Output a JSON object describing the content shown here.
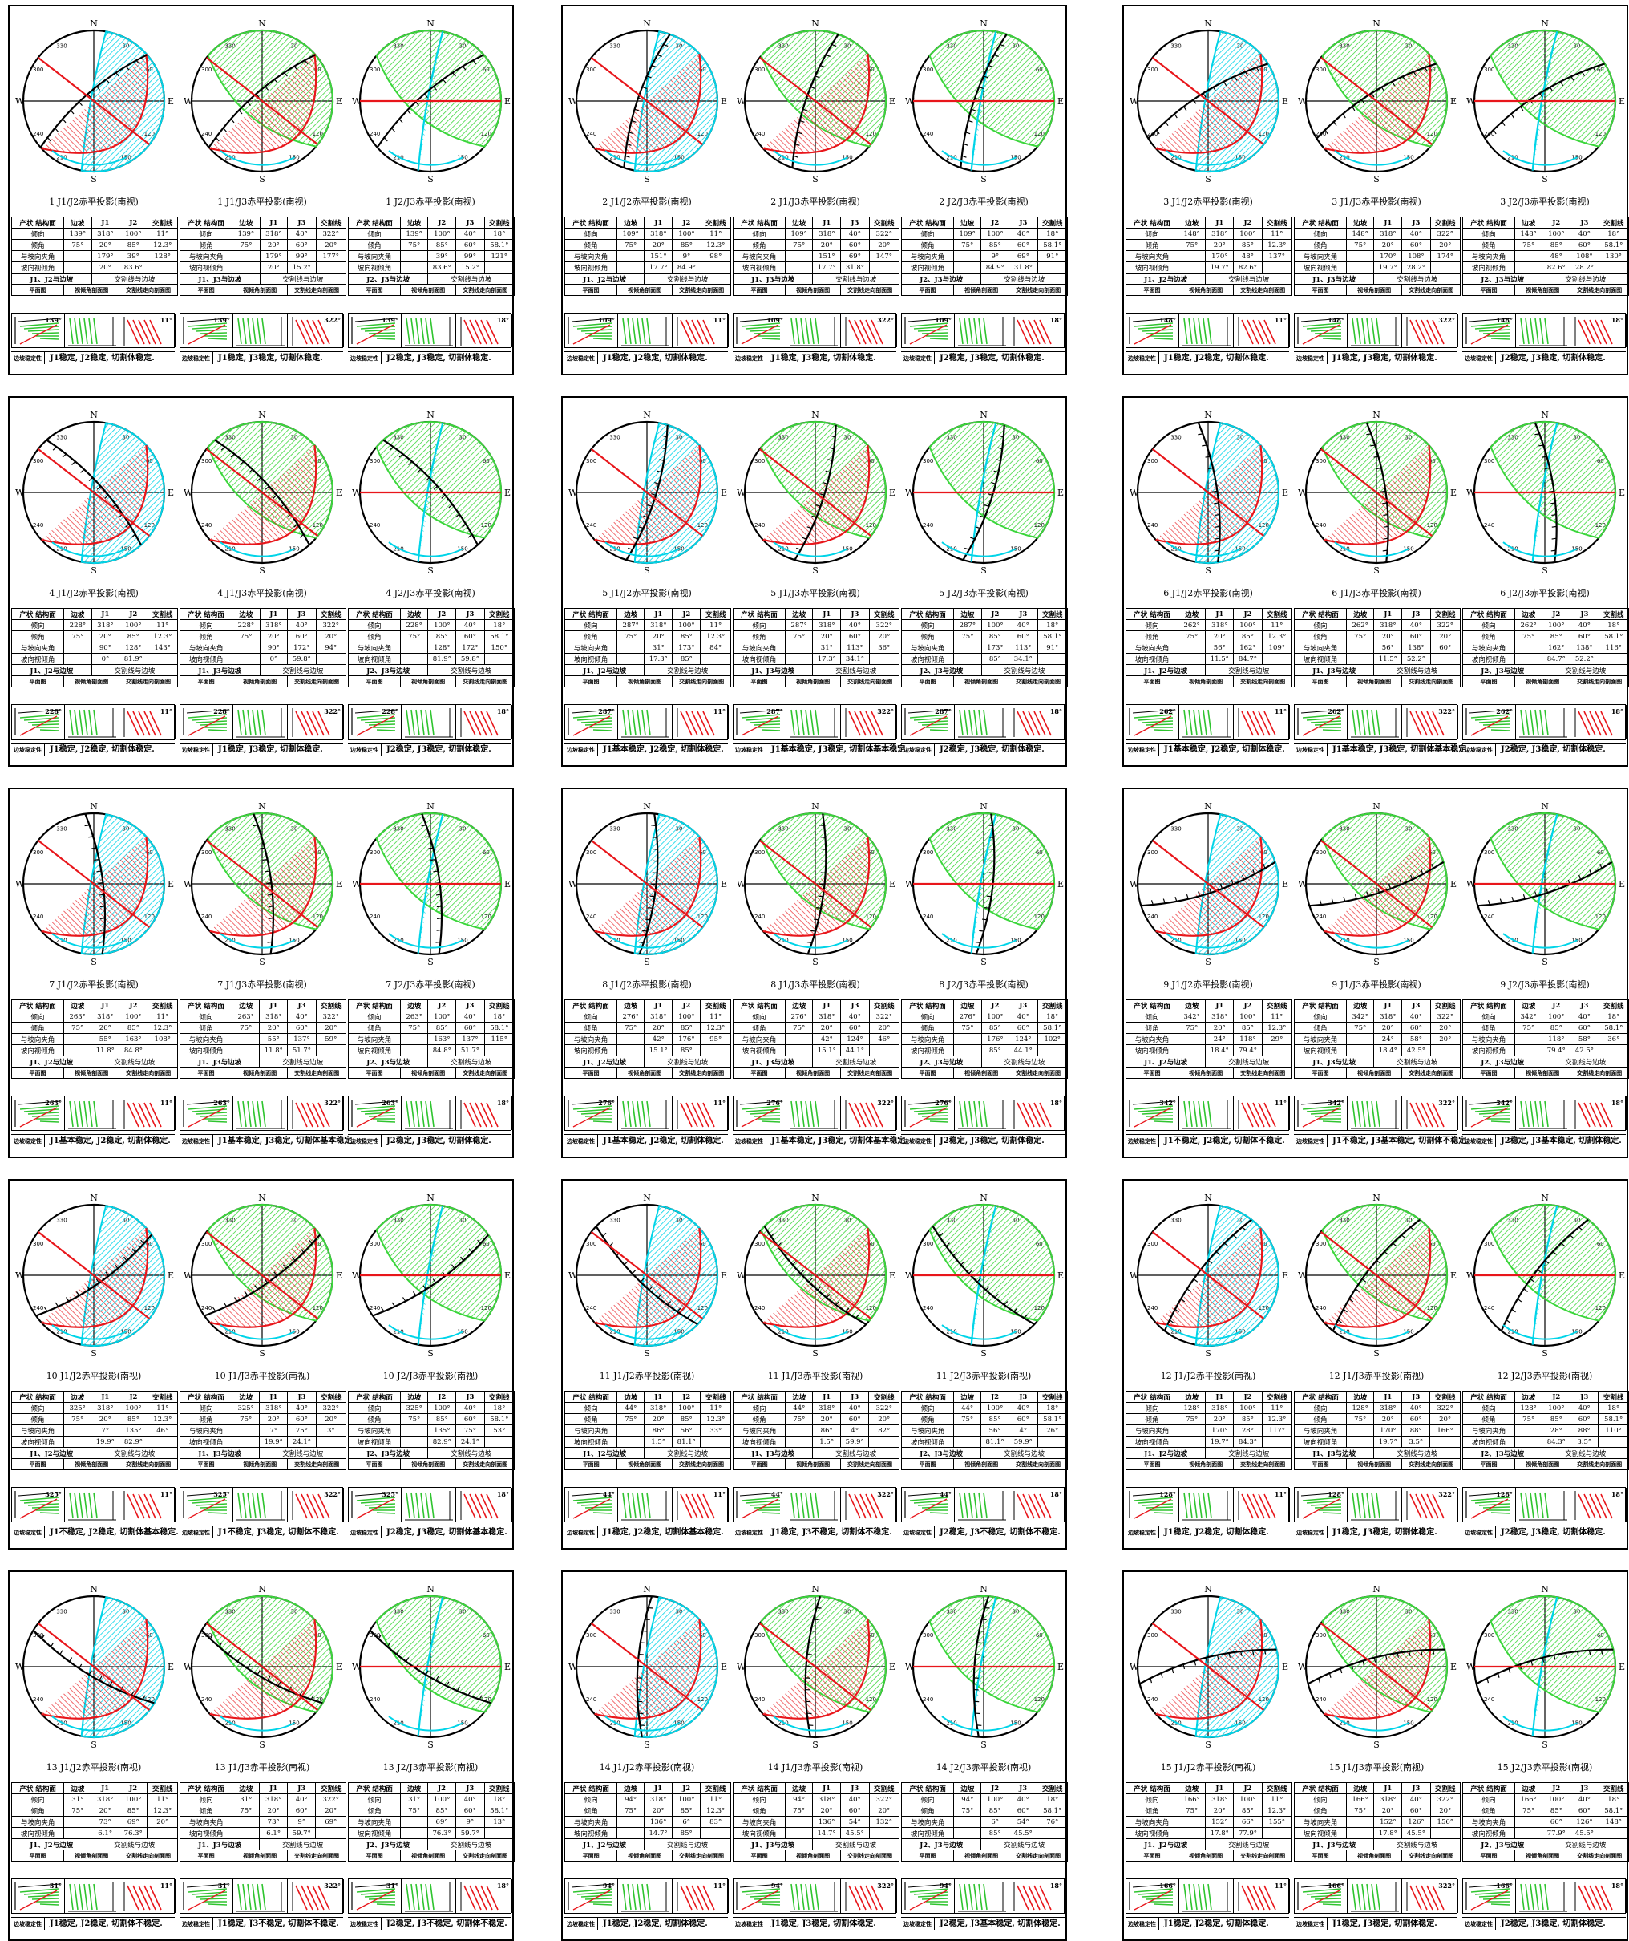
{
  "table_headers": [
    "产状",
    "结构面",
    "边坡",
    "交割线"
  ],
  "row_labels": {
    "dip_dir": "倾向",
    "dip": "倾角",
    "angle": "与坡向夹角",
    "apparent": "坡向视倾角"
  },
  "table_subheader_cols": {
    "j1j2": [
      "J1",
      "J2"
    ],
    "j1j3": [
      "J1",
      "J3"
    ],
    "j2j3": [
      "J2",
      "J3"
    ]
  },
  "pair_headers": {
    "j1j2": "J1、J2与边坡",
    "j1j3": "J1、J3与边坡",
    "j2j3": "J2、J3与边坡"
  },
  "intersect_label": "交割线与边坡",
  "thumb_labels": [
    "平面图",
    "视倾角剖面图",
    "交割线走向剖面图"
  ],
  "conclusion_tag": "边坡稳定性",
  "caption_suffix": "赤平投影(南视)",
  "compass": {
    "N": "N",
    "S": "S",
    "E": "E",
    "W": "W"
  },
  "tick_labels": [
    "30",
    "330",
    "60",
    "300",
    "120",
    "240",
    "150",
    "210"
  ],
  "fixed": {
    "j1": {
      "dir": "318°",
      "dip": "20°"
    },
    "j2": {
      "dir": "100°",
      "dip": "85°"
    },
    "j3": {
      "dir": "40°",
      "dip": "60°"
    },
    "x12": {
      "dir": "11°",
      "dip": "12.3°"
    },
    "x13": {
      "dir": "322°",
      "dip": "20°"
    },
    "x23": {
      "dir": "18°",
      "dip": "58.1°"
    }
  },
  "colors": {
    "slope": "#000000",
    "j1": "#e8161b",
    "j2": "#00d4e8",
    "j3": "#3cd63c"
  },
  "panels": [
    {
      "n": "1",
      "slope": "139°",
      "slope_dip": "75°",
      "a": {
        "cap": "1  J1/J2赤平投影(南视)",
        "ang": [
          "179°",
          "39°",
          "128°"
        ],
        "app": [
          "20°",
          "83.6°",
          ""
        ]
      },
      "b": {
        "cap": "1  J1/J3赤平投影(南视)",
        "ang": [
          "179°",
          "99°",
          "177°"
        ],
        "app": [
          "20°",
          "15.2°",
          ""
        ]
      },
      "c": {
        "cap": "1  J2/J3赤平投影(南视)",
        "ang": [
          "39°",
          "99°",
          "121°"
        ],
        "app": [
          "83.6°",
          "15.2°",
          ""
        ]
      },
      "concl": [
        "J1稳定, J2稳定, 切割体稳定.",
        "J1稳定, J3稳定, 切割体稳定.",
        "J2稳定, J3稳定, 切割体稳定."
      ]
    },
    {
      "n": "2",
      "slope": "109°",
      "slope_dip": "75°",
      "a": {
        "cap": "2  J1/J2赤平投影(南视)",
        "ang": [
          "151°",
          "9°",
          "98°"
        ],
        "app": [
          "17.7°",
          "84.9°",
          ""
        ]
      },
      "b": {
        "cap": "2  J1/J3赤平投影(南视)",
        "ang": [
          "151°",
          "69°",
          "147°"
        ],
        "app": [
          "17.7°",
          "31.8°",
          ""
        ]
      },
      "c": {
        "cap": "2  J2/J3赤平投影(南视)",
        "ang": [
          "9°",
          "69°",
          "91°"
        ],
        "app": [
          "84.9°",
          "31.8°",
          ""
        ]
      },
      "concl": [
        "J1稳定, J2稳定, 切割体稳定.",
        "J1稳定, J3稳定, 切割体稳定.",
        "J2稳定, J3稳定, 切割体稳定."
      ]
    },
    {
      "n": "3",
      "slope": "148°",
      "slope_dip": "75°",
      "a": {
        "cap": "3  J1/J2赤平投影(南视)",
        "ang": [
          "170°",
          "48°",
          "137°"
        ],
        "app": [
          "19.7°",
          "82.6°",
          ""
        ]
      },
      "b": {
        "cap": "3  J1/J3赤平投影(南视)",
        "ang": [
          "170°",
          "108°",
          "174°"
        ],
        "app": [
          "19.7°",
          "28.2°",
          ""
        ]
      },
      "c": {
        "cap": "3  J2/J3赤平投影(南视)",
        "ang": [
          "48°",
          "108°",
          "130°"
        ],
        "app": [
          "82.6°",
          "28.2°",
          ""
        ]
      },
      "concl": [
        "J1稳定, J2稳定, 切割体稳定.",
        "J1稳定, J3稳定, 切割体稳定.",
        "J2稳定, J3稳定, 切割体稳定."
      ]
    },
    {
      "n": "4",
      "slope": "228°",
      "slope_dip": "75°",
      "a": {
        "cap": "4  J1/J2赤平投影(南视)",
        "ang": [
          "90°",
          "128°",
          "143°"
        ],
        "app": [
          "0°",
          "81.9°",
          ""
        ]
      },
      "b": {
        "cap": "4  J1/J3赤平投影(南视)",
        "ang": [
          "90°",
          "172°",
          "94°"
        ],
        "app": [
          "0°",
          "59.8°",
          ""
        ]
      },
      "c": {
        "cap": "4  J2/J3赤平投影(南视)",
        "ang": [
          "128°",
          "172°",
          "150°"
        ],
        "app": [
          "81.9°",
          "59.8°",
          ""
        ]
      },
      "concl": [
        "J1稳定, J2稳定, 切割体稳定.",
        "J1稳定, J3稳定, 切割体稳定.",
        "J2稳定, J3稳定, 切割体稳定."
      ]
    },
    {
      "n": "5",
      "slope": "287°",
      "slope_dip": "75°",
      "a": {
        "cap": "5  J1/J2赤平投影(南视)",
        "ang": [
          "31°",
          "173°",
          "84°"
        ],
        "app": [
          "17.3°",
          "85°",
          ""
        ]
      },
      "b": {
        "cap": "5  J1/J3赤平投影(南视)",
        "ang": [
          "31°",
          "113°",
          "36°"
        ],
        "app": [
          "17.3°",
          "34.1°",
          ""
        ]
      },
      "c": {
        "cap": "5  J2/J3赤平投影(南视)",
        "ang": [
          "173°",
          "113°",
          "91°"
        ],
        "app": [
          "85°",
          "34.1°",
          ""
        ]
      },
      "concl": [
        "J1基本稳定, J2稳定, 切割体稳定.",
        "J1基本稳定, J3稳定, 切割体基本稳定.",
        "J2稳定, J3稳定, 切割体稳定."
      ]
    },
    {
      "n": "6",
      "slope": "262°",
      "slope_dip": "75°",
      "a": {
        "cap": "6  J1/J2赤平投影(南视)",
        "ang": [
          "56°",
          "162°",
          "109°"
        ],
        "app": [
          "11.5°",
          "84.7°",
          ""
        ]
      },
      "b": {
        "cap": "6  J1/J3赤平投影(南视)",
        "ang": [
          "56°",
          "138°",
          "60°"
        ],
        "app": [
          "11.5°",
          "52.2°",
          ""
        ]
      },
      "c": {
        "cap": "6  J2/J3赤平投影(南视)",
        "ang": [
          "162°",
          "138°",
          "116°"
        ],
        "app": [
          "84.7°",
          "52.2°",
          ""
        ]
      },
      "concl": [
        "J1基本稳定, J2稳定, 切割体稳定.",
        "J1基本稳定, J3稳定, 切割体基本稳定.",
        "J2稳定, J3稳定, 切割体稳定."
      ]
    },
    {
      "n": "7",
      "slope": "263°",
      "slope_dip": "75°",
      "a": {
        "cap": "7  J1/J2赤平投影(南视)",
        "ang": [
          "55°",
          "163°",
          "108°"
        ],
        "app": [
          "11.8°",
          "84.8°",
          ""
        ]
      },
      "b": {
        "cap": "7  J1/J3赤平投影(南视)",
        "ang": [
          "55°",
          "137°",
          "59°"
        ],
        "app": [
          "11.8°",
          "51.7°",
          ""
        ]
      },
      "c": {
        "cap": "7  J2/J3赤平投影(南视)",
        "ang": [
          "163°",
          "137°",
          "115°"
        ],
        "app": [
          "84.8°",
          "51.7°",
          ""
        ]
      },
      "concl": [
        "J1基本稳定, J2稳定, 切割体稳定.",
        "J1基本稳定, J3稳定, 切割体基本稳定.",
        "J2稳定, J3稳定, 切割体稳定."
      ]
    },
    {
      "n": "8",
      "slope": "276°",
      "slope_dip": "75°",
      "a": {
        "cap": "8  J1/J2赤平投影(南视)",
        "ang": [
          "42°",
          "176°",
          "95°"
        ],
        "app": [
          "15.1°",
          "85°",
          ""
        ]
      },
      "b": {
        "cap": "8  J1/J3赤平投影(南视)",
        "ang": [
          "42°",
          "124°",
          "46°"
        ],
        "app": [
          "15.1°",
          "44.1°",
          ""
        ]
      },
      "c": {
        "cap": "8  J2/J3赤平投影(南视)",
        "ang": [
          "176°",
          "124°",
          "102°"
        ],
        "app": [
          "85°",
          "44.1°",
          ""
        ]
      },
      "concl": [
        "J1基本稳定, J2稳定, 切割体稳定.",
        "J1基本稳定, J3稳定, 切割体基本稳定.",
        "J2稳定, J3稳定, 切割体稳定."
      ]
    },
    {
      "n": "9",
      "slope": "342°",
      "slope_dip": "75°",
      "a": {
        "cap": "9  J1/J2赤平投影(南视)",
        "ang": [
          "24°",
          "118°",
          "29°"
        ],
        "app": [
          "18.4°",
          "79.4°",
          ""
        ]
      },
      "b": {
        "cap": "9  J1/J3赤平投影(南视)",
        "ang": [
          "24°",
          "58°",
          "20°"
        ],
        "app": [
          "18.4°",
          "42.5°",
          ""
        ]
      },
      "c": {
        "cap": "9  J2/J3赤平投影(南视)",
        "ang": [
          "118°",
          "58°",
          "36°"
        ],
        "app": [
          "79.4°",
          "42.5°",
          ""
        ]
      },
      "concl": [
        "J1不稳定, J2稳定, 切割体不稳定.",
        "J1不稳定, J3基本稳定, 切割体不稳定.",
        "J2稳定, J3基本稳定, 切割体稳定."
      ]
    },
    {
      "n": "10",
      "slope": "325°",
      "slope_dip": "75°",
      "a": {
        "cap": "10  J1/J2赤平投影(南视)",
        "ang": [
          "7°",
          "135°",
          "46°"
        ],
        "app": [
          "19.9°",
          "82.9°",
          ""
        ]
      },
      "b": {
        "cap": "10  J1/J3赤平投影(南视)",
        "ang": [
          "7°",
          "75°",
          "3°"
        ],
        "app": [
          "19.9°",
          "24.1°",
          ""
        ]
      },
      "c": {
        "cap": "10  J2/J3赤平投影(南视)",
        "ang": [
          "135°",
          "75°",
          "53°"
        ],
        "app": [
          "82.9°",
          "24.1°",
          ""
        ]
      },
      "concl": [
        "J1不稳定, J2稳定, 切割体基本稳定.",
        "J1不稳定, J3稳定, 切割体不稳定.",
        "J2稳定, J3稳定, 切割体基本稳定."
      ]
    },
    {
      "n": "11",
      "slope": "44°",
      "slope_dip": "75°",
      "a": {
        "cap": "11  J1/J2赤平投影(南视)",
        "ang": [
          "86°",
          "56°",
          "33°"
        ],
        "app": [
          "1.5°",
          "81.1°",
          ""
        ]
      },
      "b": {
        "cap": "11  J1/J3赤平投影(南视)",
        "ang": [
          "86°",
          "4°",
          "82°"
        ],
        "app": [
          "1.5°",
          "59.9°",
          ""
        ]
      },
      "c": {
        "cap": "11  J2/J3赤平投影(南视)",
        "ang": [
          "56°",
          "4°",
          "26°"
        ],
        "app": [
          "81.1°",
          "59.9°",
          ""
        ]
      },
      "concl": [
        "J1稳定, J2稳定, 切割体基本稳定.",
        "J1稳定, J3不稳定, 切割体不稳定.",
        "J2稳定, J3不稳定, 切割体不稳定."
      ]
    },
    {
      "n": "12",
      "slope": "128°",
      "slope_dip": "75°",
      "a": {
        "cap": "12  J1/J2赤平投影(南视)",
        "ang": [
          "170°",
          "28°",
          "117°"
        ],
        "app": [
          "19.7°",
          "84.3°",
          ""
        ]
      },
      "b": {
        "cap": "12  J1/J3赤平投影(南视)",
        "ang": [
          "170°",
          "88°",
          "166°"
        ],
        "app": [
          "19.7°",
          "3.5°",
          ""
        ]
      },
      "c": {
        "cap": "12  J2/J3赤平投影(南视)",
        "ang": [
          "28°",
          "88°",
          "110°"
        ],
        "app": [
          "84.3°",
          "3.5°",
          ""
        ]
      },
      "concl": [
        "J1稳定, J2稳定, 切割体稳定.",
        "J1稳定, J3稳定, 切割体稳定.",
        "J2稳定, J3稳定, 切割体稳定."
      ]
    },
    {
      "n": "13",
      "slope": "31°",
      "slope_dip": "75°",
      "a": {
        "cap": "13  J1/J2赤平投影(南视)",
        "ang": [
          "73°",
          "69°",
          "20°"
        ],
        "app": [
          "6.1°",
          "76.3°",
          ""
        ]
      },
      "b": {
        "cap": "13  J1/J3赤平投影(南视)",
        "ang": [
          "73°",
          "9°",
          "69°"
        ],
        "app": [
          "6.1°",
          "59.7°",
          ""
        ]
      },
      "c": {
        "cap": "13  J2/J3赤平投影(南视)",
        "ang": [
          "69°",
          "9°",
          "13°"
        ],
        "app": [
          "76.3°",
          "59.7°",
          ""
        ]
      },
      "concl": [
        "J1稳定, J2稳定, 切割体不稳定.",
        "J1稳定, J3不稳定, 切割体不稳定.",
        "J2稳定, J3不稳定, 切割体不稳定."
      ]
    },
    {
      "n": "14",
      "slope": "94°",
      "slope_dip": "75°",
      "a": {
        "cap": "14  J1/J2赤平投影(南视)",
        "ang": [
          "136°",
          "6°",
          "83°"
        ],
        "app": [
          "14.7°",
          "85°",
          ""
        ]
      },
      "b": {
        "cap": "14  J1/J3赤平投影(南视)",
        "ang": [
          "136°",
          "54°",
          "132°"
        ],
        "app": [
          "14.7°",
          "45.5°",
          ""
        ]
      },
      "c": {
        "cap": "14  J2/J3赤平投影(南视)",
        "ang": [
          "6°",
          "54°",
          "76°"
        ],
        "app": [
          "85°",
          "45.5°",
          ""
        ]
      },
      "concl": [
        "J1稳定, J2稳定, 切割体稳定.",
        "J1稳定, J3稳定, 切割体稳定.",
        "J2稳定, J3基本稳定, 切割体稳定."
      ]
    },
    {
      "n": "15",
      "slope": "166°",
      "slope_dip": "75°",
      "a": {
        "cap": "15  J1/J2赤平投影(南视)",
        "ang": [
          "152°",
          "66°",
          "155°"
        ],
        "app": [
          "17.8°",
          "77.9°",
          ""
        ]
      },
      "b": {
        "cap": "15  J1/J3赤平投影(南视)",
        "ang": [
          "152°",
          "126°",
          "156°"
        ],
        "app": [
          "17.8°",
          "45.5°",
          ""
        ]
      },
      "c": {
        "cap": "15  J2/J3赤平投影(南视)",
        "ang": [
          "66°",
          "126°",
          "148°"
        ],
        "app": [
          "77.9°",
          "45.5°",
          ""
        ]
      },
      "concl": [
        "J1稳定, J2稳定, 切割体稳定.",
        "J1稳定, J3稳定, 切割体稳定.",
        "J2稳定, J3稳定, 切割体稳定."
      ]
    }
  ]
}
